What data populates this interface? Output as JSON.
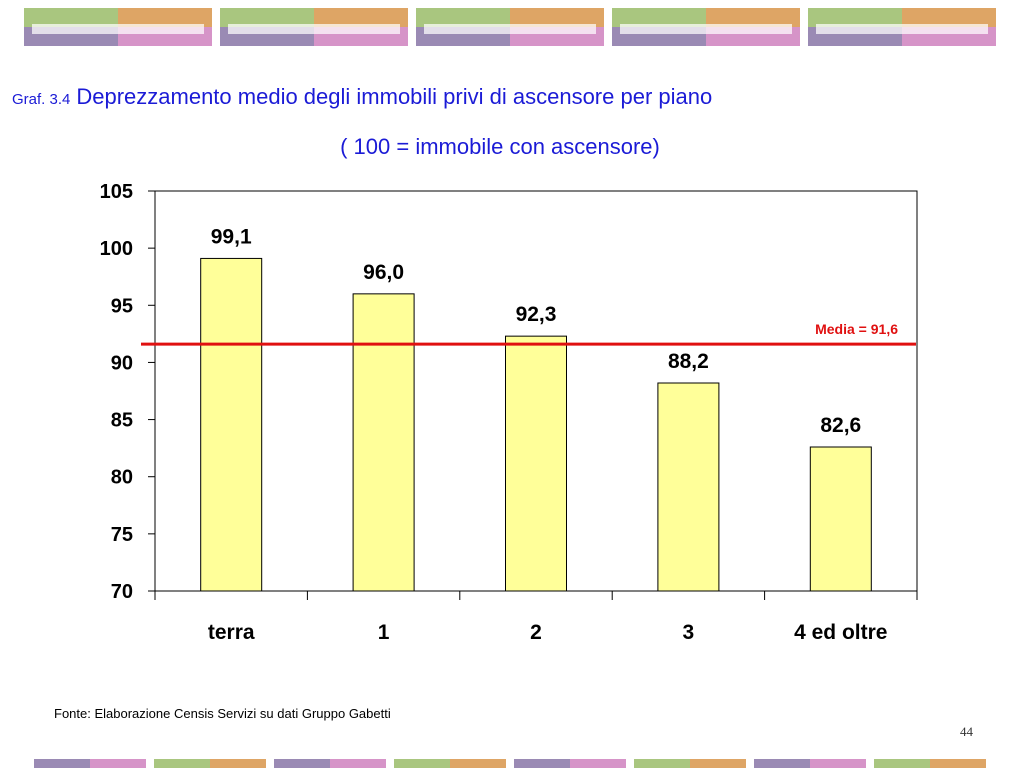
{
  "header": {
    "colors": {
      "green": "#a9c67f",
      "orange": "#dea565",
      "purple": "#9a8ab4",
      "pink": "#d694c8"
    }
  },
  "title": {
    "prefix": "Graf. 3.4",
    "text": "Deprezzamento medio degli immobili privi di ascensore per piano",
    "subtitle": "( 100 = immobile con ascensore)"
  },
  "chart_data": {
    "type": "bar",
    "categories": [
      "terra",
      "1",
      "2",
      "3",
      "4 ed oltre"
    ],
    "values": [
      99.1,
      96.0,
      92.3,
      88.2,
      82.6
    ],
    "value_labels": [
      "99,1",
      "96,0",
      "92,3",
      "88,2",
      "82,6"
    ],
    "ylim": [
      70,
      105
    ],
    "yticks": [
      70,
      75,
      80,
      85,
      90,
      95,
      100,
      105
    ],
    "reference_line": {
      "value": 91.6,
      "label": "Media = 91,6",
      "color": "#e01010"
    },
    "bar_color": "#ffff99",
    "grid": false
  },
  "footer": {
    "source": "Fonte: Elaborazione Censis Servizi su dati Gruppo Gabetti",
    "page_number": "44"
  }
}
